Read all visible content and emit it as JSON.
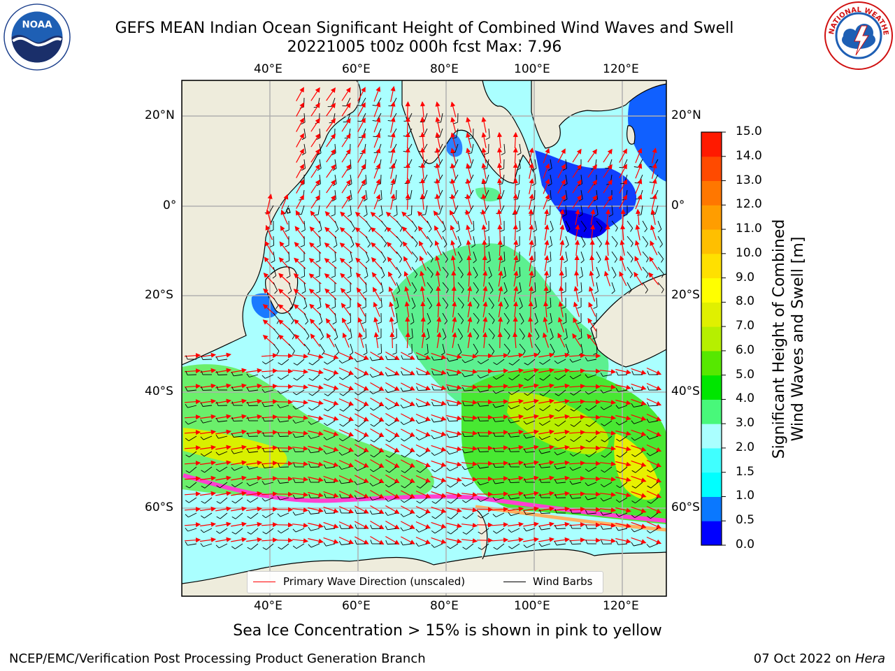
{
  "header": {
    "title_line1": "GEFS MEAN Indian Ocean Significant Height of Combined Wind Waves and Swell",
    "title_line2": "20221005 t00z 000h fcst   Max: 7.96"
  },
  "logos": {
    "left": {
      "name": "noaa-logo",
      "text": "NOAA",
      "ring_text": "NATIONAL OCEANIC AND ATMOSPHERIC ADMINISTRATION · U.S. DEPARTMENT OF COMMERCE"
    },
    "right": {
      "name": "nws-logo",
      "ring_text": "NATIONAL WEATHER SERVICE"
    }
  },
  "map": {
    "lon_labels": [
      "40°E",
      "60°E",
      "80°E",
      "100°E",
      "120°E"
    ],
    "lat_labels": [
      "20°N",
      "0°",
      "20°S",
      "40°S",
      "60°S"
    ],
    "extent": {
      "lon": [
        20,
        130
      ],
      "lat": [
        -72,
        26
      ]
    },
    "colors": {
      "land": "#eeecdc",
      "gridline": "#b0b0b0",
      "wave_arrow": "#ff0000",
      "wind_barb": "#000000"
    }
  },
  "colorbar": {
    "label_line1": "Significant Height of Combined",
    "label_line2": "Wind Waves and Swell [m]",
    "ticks": [
      "0.0",
      "0.5",
      "1.0",
      "1.5",
      "2.0",
      "3.0",
      "4.0",
      "5.0",
      "6.0",
      "7.0",
      "8.0",
      "9.0",
      "10.0",
      "11.0",
      "12.0",
      "13.0",
      "14.0",
      "15.0"
    ],
    "colors": [
      "#0000ff",
      "#0a78ff",
      "#00ffff",
      "#40ffff",
      "#aaffff",
      "#48f87a",
      "#00e600",
      "#56e800",
      "#b6ef00",
      "#e0f000",
      "#ffff00",
      "#ffe000",
      "#ffbf00",
      "#ff9d00",
      "#ff7700",
      "#ff4a00",
      "#ff1a00"
    ]
  },
  "legend": {
    "wave_label": "Primary Wave Direction (unscaled)",
    "wind_label": "Wind Barbs"
  },
  "note": "Sea Ice Concentration > 15% is shown in pink to yellow",
  "footer": {
    "left": "NCEP/EMC/Verification Post Processing Product Generation Branch",
    "date": "07 Oct 2022 on",
    "machine": "Hera"
  }
}
